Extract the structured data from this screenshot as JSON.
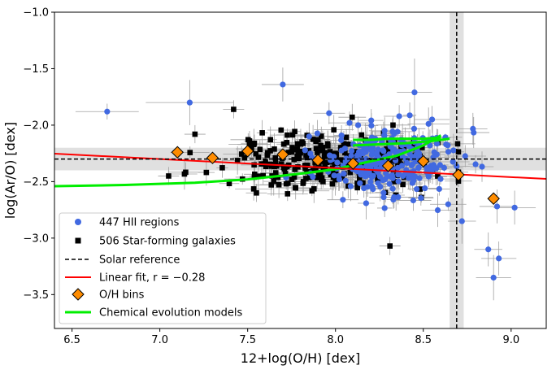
{
  "chart_data": {
    "type": "scatter",
    "xlabel": "12+log(O/H) [dex]",
    "ylabel": "log(Ar/O) [dex]",
    "xlim": [
      6.4,
      9.2
    ],
    "ylim": [
      -3.8,
      -1.0
    ],
    "x_ticks": [
      6.5,
      7.0,
      7.5,
      8.0,
      8.5,
      9.0
    ],
    "x_tick_labels": [
      "6.5",
      "7.0",
      "7.5",
      "8.0",
      "8.5",
      "9.0"
    ],
    "y_ticks": [
      -1.0,
      -1.5,
      -2.0,
      -2.5,
      -3.0,
      -3.5
    ],
    "y_tick_labels": [
      "−1.0",
      "−1.5",
      "−2.0",
      "−2.5",
      "−3.0",
      "−3.5"
    ],
    "colors": {
      "hii": "#4169e1",
      "sfg": "#000000",
      "fit": "#ff0000",
      "bins": "#ff8c00",
      "models": "#00ee00",
      "errorbar": "#a0a0a0",
      "solar_band": "#d3d3d3"
    },
    "solar_reference": {
      "oh": 8.69,
      "oh_err": 0.04,
      "aro": -2.3,
      "aro_err": 0.1
    },
    "linear_fit": {
      "slope": -0.08,
      "intercept": -1.74,
      "x_range": [
        6.4,
        9.2
      ]
    },
    "chemical_evolution_models": [
      {
        "name": "model-low",
        "points": [
          [
            6.4,
            -2.54
          ],
          [
            6.8,
            -2.53
          ],
          [
            7.2,
            -2.51
          ],
          [
            7.5,
            -2.48
          ],
          [
            7.8,
            -2.43
          ],
          [
            8.0,
            -2.39
          ],
          [
            8.2,
            -2.32
          ],
          [
            8.35,
            -2.27
          ],
          [
            8.5,
            -2.18
          ],
          [
            8.6,
            -2.09
          ]
        ]
      },
      {
        "name": "model-high-1",
        "points": [
          [
            8.1,
            -2.13
          ],
          [
            8.2,
            -2.13
          ],
          [
            8.3,
            -2.12
          ],
          [
            8.4,
            -2.12
          ],
          [
            8.5,
            -2.12
          ],
          [
            8.6,
            -2.11
          ]
        ]
      },
      {
        "name": "model-high-2",
        "points": [
          [
            8.1,
            -2.18
          ],
          [
            8.25,
            -2.17
          ],
          [
            8.4,
            -2.16
          ],
          [
            8.55,
            -2.14
          ],
          [
            8.65,
            -2.12
          ]
        ]
      }
    ],
    "oh_bins": [
      {
        "x": 7.1,
        "y": -2.24
      },
      {
        "x": 7.3,
        "y": -2.29
      },
      {
        "x": 7.5,
        "y": -2.23
      },
      {
        "x": 7.7,
        "y": -2.26
      },
      {
        "x": 7.9,
        "y": -2.31
      },
      {
        "x": 8.1,
        "y": -2.34
      },
      {
        "x": 8.3,
        "y": -2.36
      },
      {
        "x": 8.5,
        "y": -2.32
      },
      {
        "x": 8.7,
        "y": -2.44
      },
      {
        "x": 8.9,
        "y": -2.65
      }
    ],
    "hii_regions_highlighted": [
      {
        "x": 6.7,
        "y": -1.88,
        "xerr": 0.18,
        "yerr": 0.07
      },
      {
        "x": 7.17,
        "y": -1.8,
        "xerr": 0.25,
        "yerr": 0.2
      },
      {
        "x": 7.7,
        "y": -1.64,
        "xerr": 0.12,
        "yerr": 0.15
      },
      {
        "x": 8.08,
        "y": -1.98,
        "xerr": 0.12,
        "yerr": 0.1
      },
      {
        "x": 8.45,
        "y": -1.71,
        "xerr": 0.1,
        "yerr": 0.3
      },
      {
        "x": 8.55,
        "y": -1.95,
        "xerr": 0.1,
        "yerr": 0.12
      },
      {
        "x": 8.72,
        "y": -2.85,
        "xerr": 0.08,
        "yerr": 0.2
      },
      {
        "x": 8.92,
        "y": -2.72,
        "xerr": 0.1,
        "yerr": 0.15
      },
      {
        "x": 8.87,
        "y": -3.1,
        "xerr": 0.08,
        "yerr": 0.15
      },
      {
        "x": 8.93,
        "y": -3.18,
        "xerr": 0.1,
        "yerr": 0.15
      },
      {
        "x": 8.9,
        "y": -3.35,
        "xerr": 0.1,
        "yerr": 0.2
      },
      {
        "x": 9.02,
        "y": -2.73,
        "xerr": 0.12,
        "yerr": 0.15
      },
      {
        "x": 7.85,
        "y": -2.1,
        "xerr": 0.08,
        "yerr": 0.12
      },
      {
        "x": 8.28,
        "y": -2.05,
        "xerr": 0.09,
        "yerr": 0.12
      }
    ],
    "sfg_highlighted": [
      {
        "x": 7.42,
        "y": -1.86
      },
      {
        "x": 7.05,
        "y": -2.45
      },
      {
        "x": 8.31,
        "y": -3.07
      },
      {
        "x": 7.2,
        "y": -2.08
      },
      {
        "x": 7.55,
        "y": -2.6
      }
    ],
    "cloud": {
      "hii": {
        "count": 260,
        "seed": 11,
        "x_mean": 8.32,
        "x_sd": 0.2,
        "x_min": 7.45,
        "x_max": 9.0,
        "y_mean": -2.33,
        "y_sd": 0.15
      },
      "sfg": {
        "count": 280,
        "seed": 29,
        "x_mean": 7.95,
        "x_sd": 0.3,
        "x_min": 7.0,
        "x_max": 8.7,
        "y_mean": -2.34,
        "y_sd": 0.12
      }
    },
    "legend": {
      "position": "lower-left",
      "entries": [
        {
          "label": "447 HII regions",
          "marker": "circle-blue"
        },
        {
          "label": "506 Star-forming galaxies",
          "marker": "square-black"
        },
        {
          "label": "Solar reference",
          "marker": "dashed-black"
        },
        {
          "label": "Linear fit, r = −0.28",
          "marker": "line-red"
        },
        {
          "label": "O/H bins",
          "marker": "diamond-orange"
        },
        {
          "label": "Chemical evolution models",
          "marker": "line-green"
        }
      ]
    }
  }
}
